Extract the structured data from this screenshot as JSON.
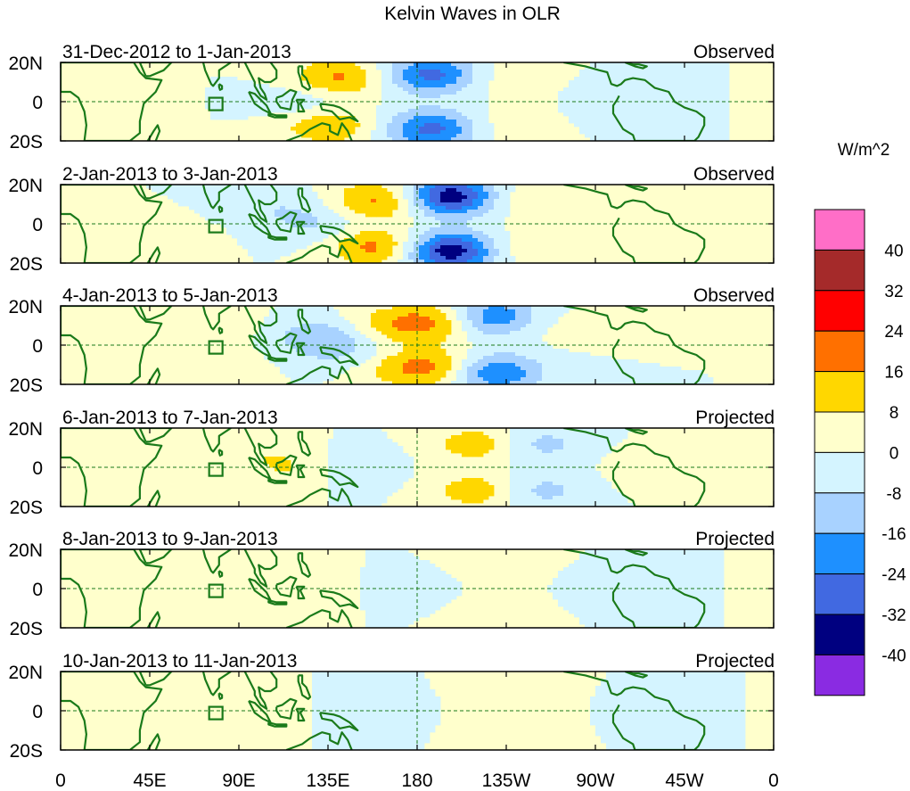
{
  "chart_data": {
    "type": "heatmap",
    "title": "Kelvin Waves in OLR",
    "units": "W/m^2",
    "x_tick_labels": [
      "0",
      "45E",
      "90E",
      "135E",
      "180",
      "135W",
      "90W",
      "45W",
      "0"
    ],
    "x_range_deg_east": [
      0,
      360
    ],
    "y_tick_labels": [
      "20N",
      "0",
      "20S"
    ],
    "y_range_deg": [
      -20,
      20
    ],
    "colorbar": {
      "levels": [
        -40,
        -32,
        -24,
        -16,
        -8,
        0,
        8,
        16,
        24,
        32,
        40
      ],
      "labels": [
        "40",
        "32",
        "24",
        "16",
        "8",
        "0",
        "-8",
        "-16",
        "-24",
        "-32",
        "-40"
      ],
      "colors": [
        "#ff6ec7",
        "#a52a2a",
        "#ff0000",
        "#ff7000",
        "#ffd700",
        "#ffffcc",
        "#d4f4ff",
        "#a8d2ff",
        "#1e90ff",
        "#4169e1",
        "#000080",
        "#8a2be2"
      ]
    },
    "panels": [
      {
        "date_range": "31-Dec-2012 to 1-Jan-2013",
        "type": "Observed",
        "anomalies": [
          {
            "lon": 140,
            "lat": 12,
            "value": 18
          },
          {
            "lon": 135,
            "lat": -12,
            "value": 16
          },
          {
            "lon": 188,
            "lat": 14,
            "value": -28
          },
          {
            "lon": 188,
            "lat": -14,
            "value": -28
          },
          {
            "lon": 215,
            "lat": 13,
            "value": 6
          },
          {
            "lon": 215,
            "lat": -13,
            "value": 6
          },
          {
            "lon": 125,
            "lat": 0,
            "value": -8
          },
          {
            "lon": 25,
            "lat": 0,
            "value": 5
          },
          {
            "lon": 290,
            "lat": 0,
            "value": -4
          }
        ]
      },
      {
        "date_range": "2-Jan-2013 to 3-Jan-2013",
        "type": "Observed",
        "anomalies": [
          {
            "lon": 162,
            "lat": 12,
            "value": 20
          },
          {
            "lon": 160,
            "lat": -12,
            "value": 20
          },
          {
            "lon": 197,
            "lat": 14,
            "value": -40
          },
          {
            "lon": 197,
            "lat": -14,
            "value": -40
          },
          {
            "lon": 225,
            "lat": 13,
            "value": 8
          },
          {
            "lon": 225,
            "lat": -13,
            "value": 8
          },
          {
            "lon": 128,
            "lat": 0,
            "value": -9
          },
          {
            "lon": 50,
            "lat": -8,
            "value": 6
          },
          {
            "lon": 105,
            "lat": 10,
            "value": -6
          }
        ]
      },
      {
        "date_range": "4-Jan-2013 to 5-Jan-2013",
        "type": "Observed",
        "anomalies": [
          {
            "lon": 190,
            "lat": 12,
            "value": 18
          },
          {
            "lon": 190,
            "lat": -12,
            "value": 18
          },
          {
            "lon": 218,
            "lat": 14,
            "value": -26
          },
          {
            "lon": 218,
            "lat": -14,
            "value": -26
          },
          {
            "lon": 165,
            "lat": 10,
            "value": 10
          },
          {
            "lon": 165,
            "lat": -10,
            "value": 10
          },
          {
            "lon": 130,
            "lat": 4,
            "value": -14
          },
          {
            "lon": 75,
            "lat": 10,
            "value": 7
          },
          {
            "lon": 75,
            "lat": -10,
            "value": 7
          },
          {
            "lon": 150,
            "lat": -5,
            "value": -9
          },
          {
            "lon": 240,
            "lat": 10,
            "value": 5
          }
        ]
      },
      {
        "date_range": "6-Jan-2013 to 7-Jan-2013",
        "type": "Projected",
        "anomalies": [
          {
            "lon": 212,
            "lat": 12,
            "value": 14
          },
          {
            "lon": 212,
            "lat": -12,
            "value": 14
          },
          {
            "lon": 240,
            "lat": 12,
            "value": -12
          },
          {
            "lon": 240,
            "lat": -12,
            "value": -12
          },
          {
            "lon": 145,
            "lat": 0,
            "value": -8
          },
          {
            "lon": 120,
            "lat": 0,
            "value": 9
          },
          {
            "lon": 95,
            "lat": 8,
            "value": 5
          },
          {
            "lon": 300,
            "lat": 0,
            "value": 5
          }
        ]
      },
      {
        "date_range": "8-Jan-2013 to 9-Jan-2013",
        "type": "Projected",
        "anomalies": [
          {
            "lon": 220,
            "lat": 10,
            "value": 7
          },
          {
            "lon": 220,
            "lat": -10,
            "value": 7
          },
          {
            "lon": 185,
            "lat": 0,
            "value": -5
          },
          {
            "lon": 120,
            "lat": 0,
            "value": 5
          },
          {
            "lon": 270,
            "lat": 0,
            "value": -4
          },
          {
            "lon": 40,
            "lat": 0,
            "value": 3
          }
        ]
      },
      {
        "date_range": "10-Jan-2013 to 11-Jan-2013",
        "type": "Projected",
        "anomalies": [
          {
            "lon": 230,
            "lat": 8,
            "value": 5
          },
          {
            "lon": 230,
            "lat": -8,
            "value": 5
          },
          {
            "lon": 155,
            "lat": 0,
            "value": -5
          },
          {
            "lon": 100,
            "lat": 0,
            "value": 4
          },
          {
            "lon": 300,
            "lat": 0,
            "value": -4
          },
          {
            "lon": 30,
            "lat": 0,
            "value": 3
          }
        ]
      }
    ]
  }
}
